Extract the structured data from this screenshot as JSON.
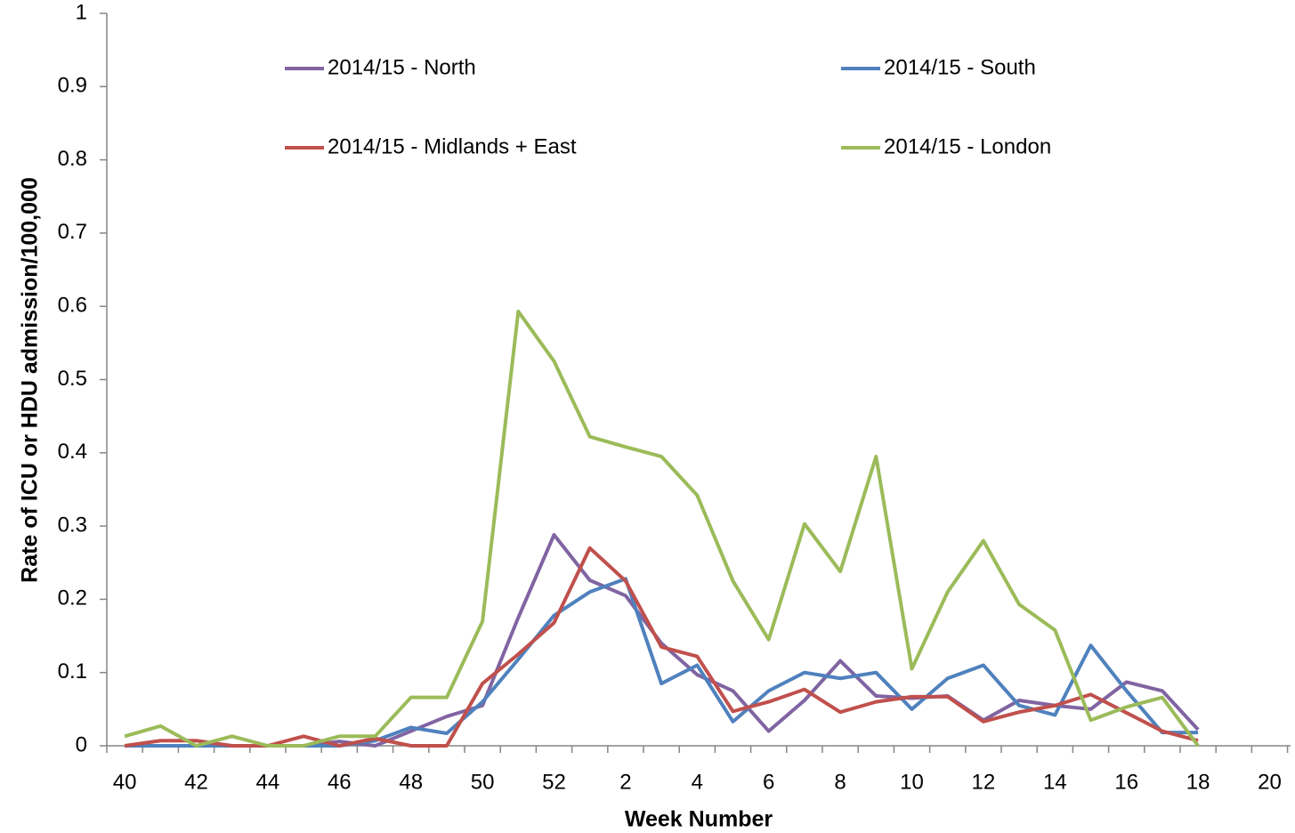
{
  "chart_data": {
    "type": "line",
    "x_label": "Week Number",
    "y_label": "Rate of ICU or HDU admission/100,000",
    "categories": [
      "40",
      null,
      "42",
      null,
      "44",
      null,
      "46",
      null,
      "48",
      null,
      "50",
      null,
      "52",
      null,
      "2",
      null,
      "4",
      null,
      "6",
      null,
      "8",
      null,
      "10",
      null,
      "12",
      null,
      "14",
      null,
      "16",
      null,
      "18",
      null,
      "20"
    ],
    "ylim": [
      0,
      1
    ],
    "yticks": [
      0,
      0.1,
      0.2,
      0.3,
      0.4,
      0.5,
      0.6,
      0.7,
      0.8,
      0.9,
      1
    ],
    "grid": false,
    "legend": "top",
    "series": [
      {
        "name": "2014/15 - North",
        "color": "#8064a2",
        "values": [
          0,
          0,
          0,
          0,
          0,
          0,
          0.006,
          0,
          0.02,
          0.04,
          0.055,
          0.175,
          0.288,
          0.226,
          0.205,
          0.14,
          0.097,
          0.075,
          0.02,
          0.062,
          0.116,
          0.068,
          0.065,
          0.068,
          0.035,
          0.062,
          0.055,
          0.05,
          0.087,
          0.075,
          0.022,
          null,
          null
        ]
      },
      {
        "name": "2014/15 - South",
        "color": "#4f81bd",
        "values": [
          0,
          0,
          0,
          0,
          0,
          0,
          0,
          0.007,
          0.025,
          0.017,
          0.06,
          0.118,
          0.178,
          0.21,
          0.228,
          0.085,
          0.11,
          0.033,
          0.075,
          0.1,
          0.092,
          0.1,
          0.05,
          0.092,
          0.11,
          0.055,
          0.042,
          0.137,
          0.075,
          0.018,
          0.018,
          null,
          null
        ]
      },
      {
        "name": "2014/15 - Midlands + East",
        "color": "#c0504d",
        "values": [
          0,
          0.007,
          0.007,
          0,
          0,
          0.013,
          0,
          0.01,
          0,
          0,
          0.085,
          0.125,
          0.168,
          0.27,
          0.225,
          0.135,
          0.122,
          0.047,
          0.06,
          0.077,
          0.046,
          0.06,
          0.067,
          0.067,
          0.033,
          0.046,
          0.055,
          0.07,
          0.045,
          0.02,
          0.007,
          null,
          null
        ]
      },
      {
        "name": "2014/15 - London",
        "color": "#9bbb59",
        "values": [
          0.013,
          0.027,
          0,
          0.013,
          0,
          0,
          0.013,
          0.013,
          0.066,
          0.066,
          0.17,
          0.593,
          0.525,
          0.422,
          0.408,
          0.395,
          0.342,
          0.225,
          0.145,
          0.303,
          0.238,
          0.395,
          0.105,
          0.21,
          0.28,
          0.193,
          0.158,
          0.035,
          0.053,
          0.066,
          0,
          null,
          null
        ]
      }
    ]
  }
}
